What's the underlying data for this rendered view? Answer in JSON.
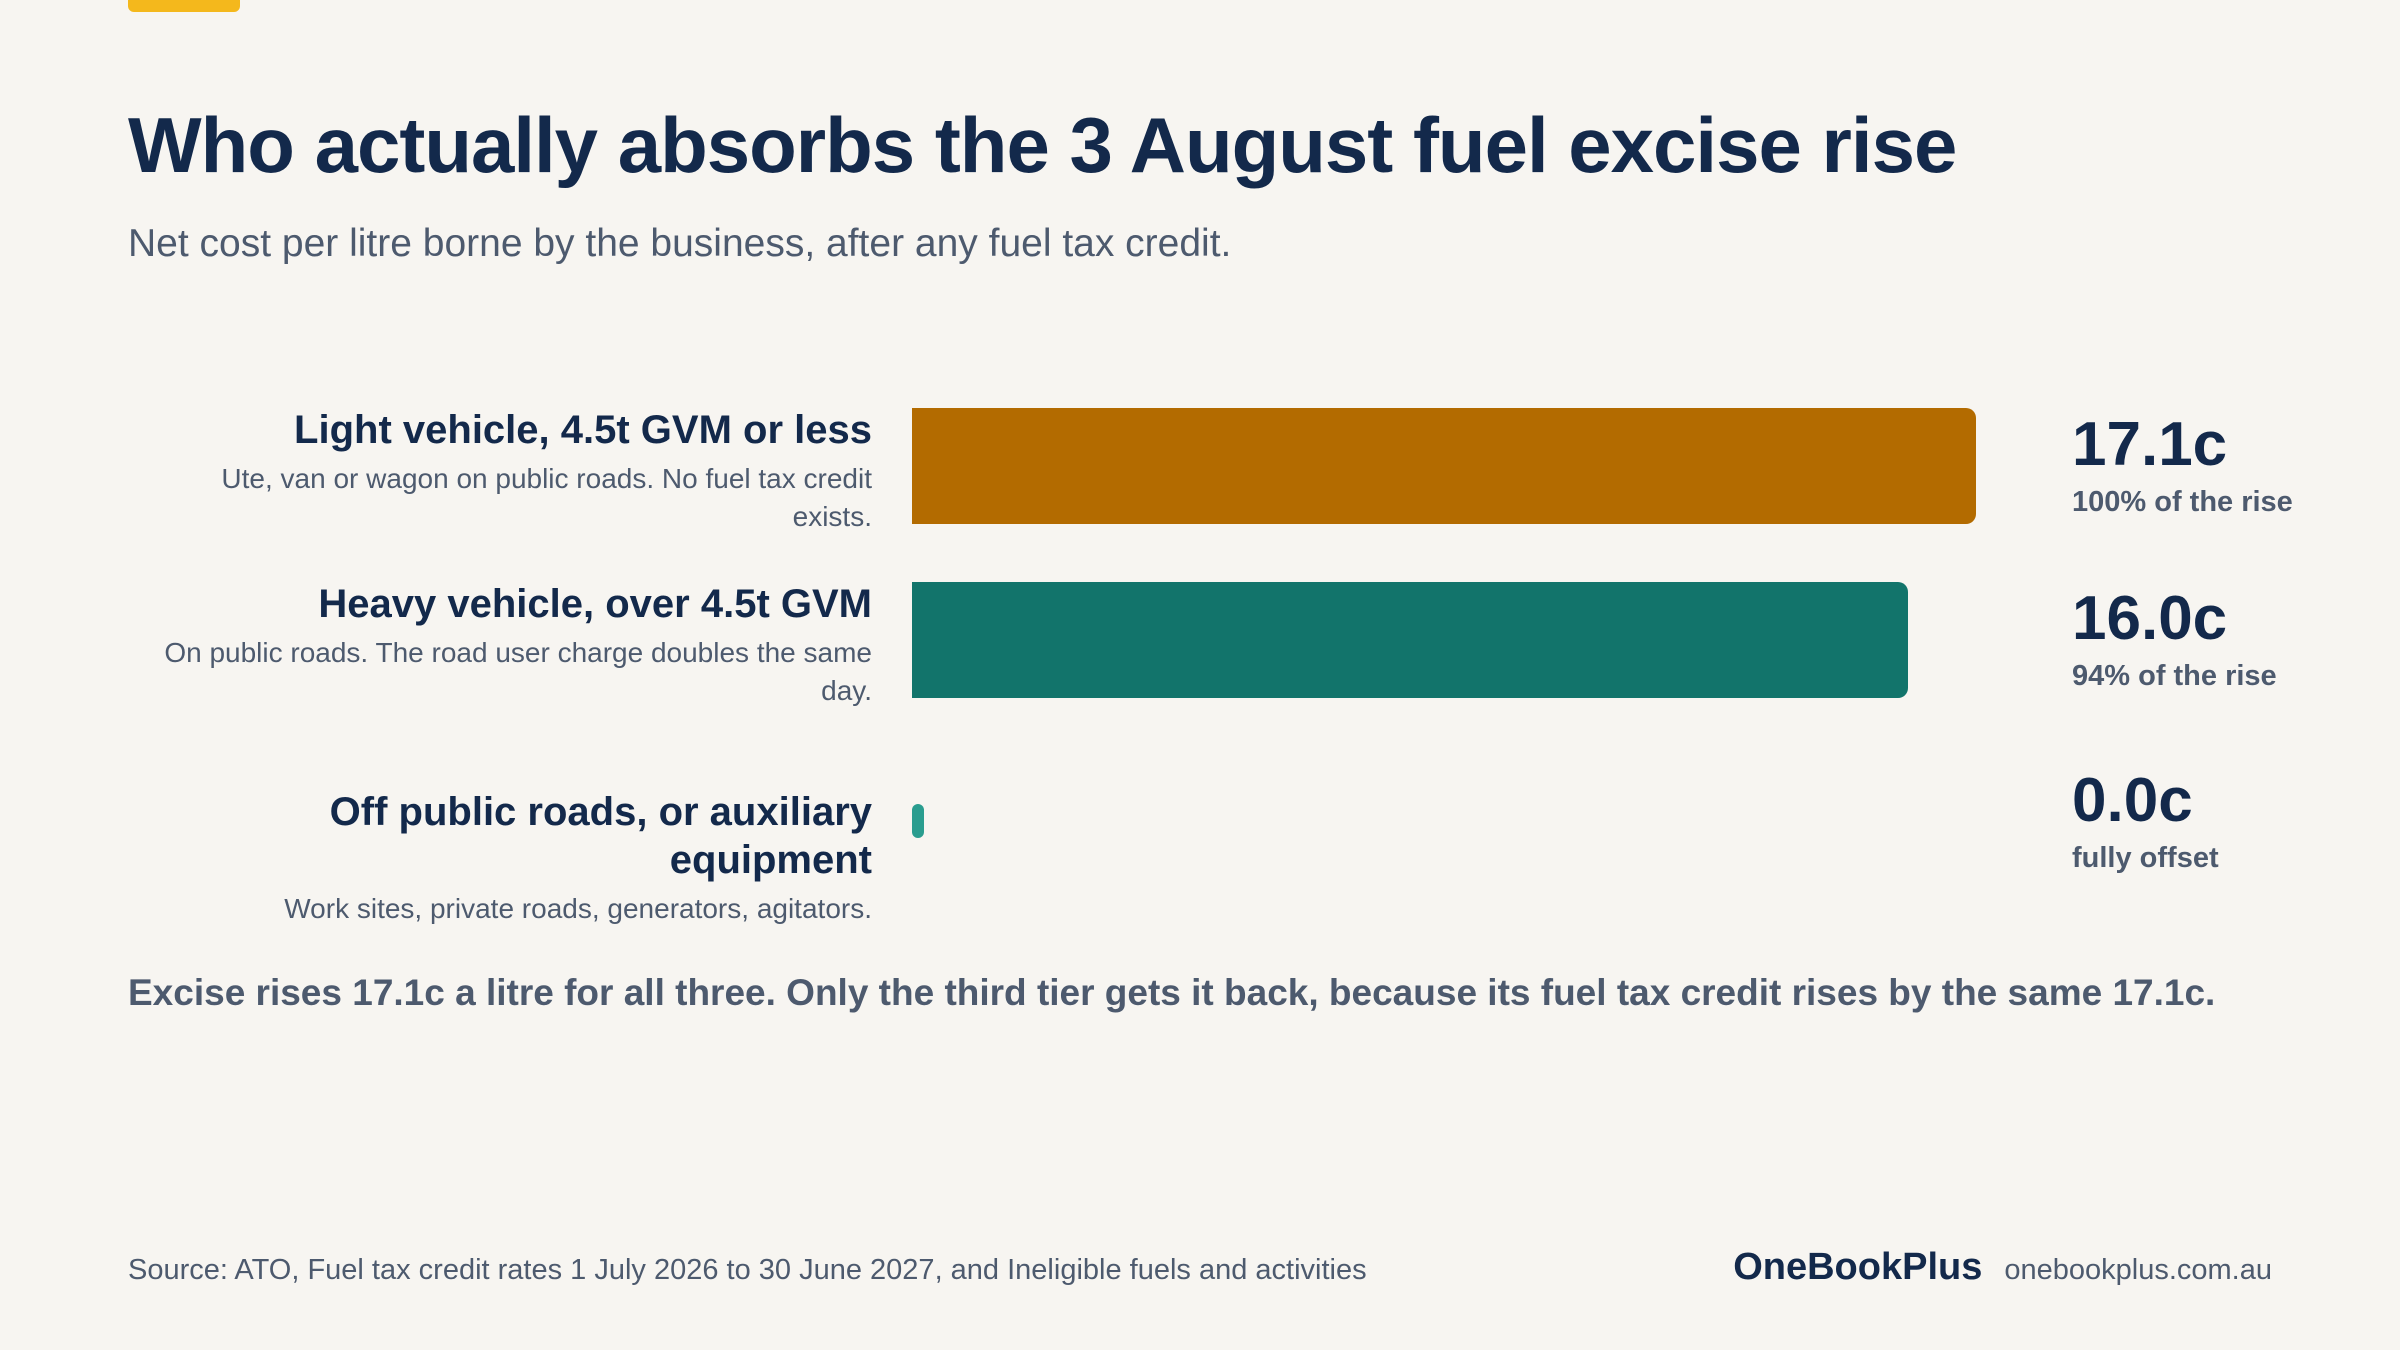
{
  "title": "Who actually absorbs the 3 August fuel excise rise",
  "subtitle": "Net cost per litre borne by the business, after any fuel tax credit.",
  "takeaway": "Excise rises 17.1c a litre for all three. Only the third tier gets it back, because its fuel tax credit rises by the same 17.1c.",
  "source": "Source: ATO, Fuel tax credit rates 1 July 2026 to 30 June 2027, and Ineligible fuels and activities",
  "brand": {
    "name": "OneBookPlus",
    "url": "onebookplus.com.au"
  },
  "colors": {
    "accent": "#f4b81c",
    "light_vehicle": "#b36b00",
    "heavy_vehicle": "#12746b",
    "off_road": "#2a9d8f",
    "heading": "#13294b",
    "muted": "#4d5a6e",
    "background": "#f7f5f1"
  },
  "chart_data": {
    "type": "bar",
    "orientation": "horizontal",
    "unit": "c per litre",
    "xlim": [
      0,
      17.1
    ],
    "categories": [
      "Light vehicle, 4.5t GVM or less",
      "Heavy vehicle, over 4.5t GVM",
      "Off public roads, or auxiliary equipment"
    ],
    "descriptions": [
      "Ute, van or wagon on public roads. No fuel tax credit exists.",
      "On public roads. The road user charge doubles the same day.",
      "Work sites, private roads, generators, agitators."
    ],
    "values": [
      17.1,
      16.0,
      0.0
    ],
    "value_labels": [
      "17.1c",
      "16.0c",
      "0.0c"
    ],
    "notes": [
      "100% of the rise",
      "94% of the rise",
      "fully offset"
    ],
    "bar_colors": [
      "#b36b00",
      "#12746b",
      "#2a9d8f"
    ],
    "grid": false,
    "legend": "none"
  }
}
